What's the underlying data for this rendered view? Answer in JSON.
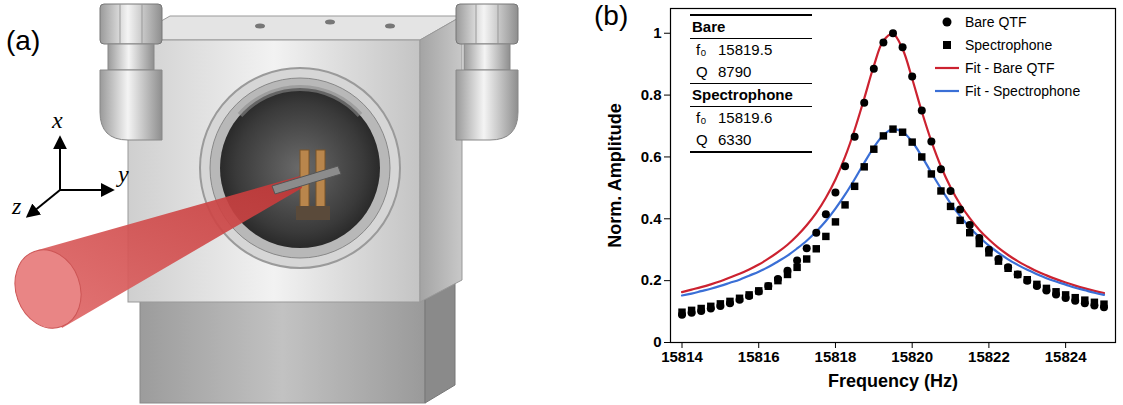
{
  "illustration": {
    "panel_label": "(a)",
    "axis_labels": [
      "x",
      "y",
      "z"
    ]
  },
  "chart_data": {
    "type": "line",
    "panel_label": "(b)",
    "x_label": "Frequency (Hz)",
    "y_label": "Norm. Amplitude",
    "x": [
      15814,
      15814.25,
      15814.5,
      15814.75,
      15815,
      15815.25,
      15815.5,
      15815.75,
      15816,
      15816.25,
      15816.5,
      15816.75,
      15817,
      15817.25,
      15817.5,
      15817.75,
      15818,
      15818.25,
      15818.5,
      15818.75,
      15819,
      15819.25,
      15819.5,
      15819.75,
      15820,
      15820.25,
      15820.5,
      15820.75,
      15821,
      15821.25,
      15821.5,
      15821.75,
      15822,
      15822.25,
      15822.5,
      15822.75,
      15823,
      15823.25,
      15823.5,
      15823.75,
      15824,
      15824.25,
      15824.5,
      15824.75,
      15825
    ],
    "series": [
      {
        "name": "Bare QTF",
        "type": "scatter",
        "marker": "circle",
        "color": "#000000",
        "values": [
          0.09,
          0.096,
          0.102,
          0.11,
          0.118,
          0.127,
          0.138,
          0.15,
          0.165,
          0.183,
          0.205,
          0.232,
          0.265,
          0.305,
          0.355,
          0.415,
          0.485,
          0.57,
          0.665,
          0.775,
          0.885,
          0.97,
          1.0,
          0.955,
          0.86,
          0.75,
          0.65,
          0.56,
          0.49,
          0.43,
          0.38,
          0.338,
          0.3,
          0.27,
          0.243,
          0.22,
          0.2,
          0.183,
          0.168,
          0.155,
          0.144,
          0.135,
          0.127,
          0.12,
          0.114
        ]
      },
      {
        "name": "Spectrophone",
        "type": "scatter",
        "marker": "square",
        "color": "#000000",
        "values": [
          0.098,
          0.104,
          0.11,
          0.117,
          0.125,
          0.133,
          0.143,
          0.154,
          0.167,
          0.182,
          0.2,
          0.22,
          0.243,
          0.27,
          0.303,
          0.343,
          0.39,
          0.445,
          0.505,
          0.568,
          0.625,
          0.668,
          0.69,
          0.68,
          0.648,
          0.6,
          0.545,
          0.49,
          0.44,
          0.395,
          0.355,
          0.32,
          0.29,
          0.263,
          0.24,
          0.22,
          0.203,
          0.188,
          0.175,
          0.164,
          0.154,
          0.145,
          0.137,
          0.13,
          0.124
        ]
      },
      {
        "name": "Fit - Bare QTF",
        "type": "line",
        "line_style": "solid",
        "color": "#cc2230",
        "values": [
          0.163,
          0.171,
          0.179,
          0.188,
          0.198,
          0.21,
          0.222,
          0.236,
          0.252,
          0.271,
          0.292,
          0.316,
          0.345,
          0.379,
          0.419,
          0.468,
          0.527,
          0.6,
          0.688,
          0.789,
          0.894,
          0.976,
          0.998,
          0.949,
          0.853,
          0.747,
          0.651,
          0.569,
          0.502,
          0.447,
          0.402,
          0.364,
          0.333,
          0.306,
          0.283,
          0.263,
          0.246,
          0.23,
          0.217,
          0.205,
          0.194,
          0.184,
          0.175,
          0.167,
          0.16
        ]
      },
      {
        "name": "Fit - Spectrophone",
        "type": "line",
        "line_style": "solid",
        "color": "#3a6fd6",
        "values": [
          0.152,
          0.158,
          0.166,
          0.174,
          0.183,
          0.193,
          0.203,
          0.216,
          0.229,
          0.244,
          0.262,
          0.281,
          0.304,
          0.329,
          0.359,
          0.393,
          0.433,
          0.478,
          0.528,
          0.581,
          0.631,
          0.671,
          0.69,
          0.681,
          0.649,
          0.602,
          0.549,
          0.498,
          0.45,
          0.409,
          0.372,
          0.341,
          0.313,
          0.29,
          0.269,
          0.251,
          0.235,
          0.221,
          0.208,
          0.197,
          0.187,
          0.177,
          0.169,
          0.161,
          0.154
        ]
      }
    ],
    "xlim": [
      15813.7,
      15825.3
    ],
    "xticks": [
      15814,
      15816,
      15818,
      15820,
      15822,
      15824
    ],
    "ylim": [
      0,
      1.08
    ],
    "yticks": [
      0,
      0.2,
      0.4,
      0.6,
      0.8,
      1
    ],
    "grid": false,
    "legend": "top-right",
    "inset_table": [
      {
        "header": "Bare",
        "rows": [
          [
            "f₀",
            15819.5
          ],
          [
            "Q",
            8790
          ]
        ]
      },
      {
        "header": "Spectrophone",
        "rows": [
          [
            "f₀",
            15819.6
          ],
          [
            "Q",
            6330
          ]
        ]
      }
    ]
  }
}
